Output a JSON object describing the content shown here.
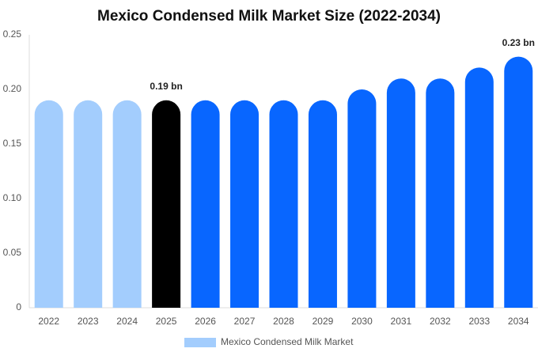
{
  "chart_data": {
    "type": "bar",
    "title": "Mexico Condensed Milk Market Size (2022-2034)",
    "categories": [
      "2022",
      "2023",
      "2024",
      "2025",
      "2026",
      "2027",
      "2028",
      "2029",
      "2030",
      "2031",
      "2032",
      "2033",
      "2034"
    ],
    "series": [
      {
        "name": "Mexico Condensed Milk Market",
        "color": "#a3cdfd",
        "values": [
          0.19,
          0.19,
          0.19,
          0.19,
          0.19,
          0.19,
          0.19,
          0.19,
          0.2,
          0.21,
          0.21,
          0.22,
          0.23
        ],
        "value_labels": [
          null,
          null,
          null,
          "0.19 bn",
          null,
          null,
          null,
          null,
          null,
          null,
          null,
          null,
          "0.23 bn"
        ],
        "colors": [
          "#a3cdfd",
          "#a3cdfd",
          "#a3cdfd",
          "#000000",
          "#0866ff",
          "#0866ff",
          "#0866ff",
          "#0866ff",
          "#0866ff",
          "#0866ff",
          "#0866ff",
          "#0866ff",
          "#0866ff"
        ]
      }
    ],
    "ylim": [
      0,
      0.25
    ],
    "yticks": [
      0,
      0.05,
      {
        "value": 0.1,
        "label": "0.10"
      },
      0.15,
      {
        "value": 0.2,
        "label": "0.20"
      },
      0.25
    ],
    "grid": false
  }
}
